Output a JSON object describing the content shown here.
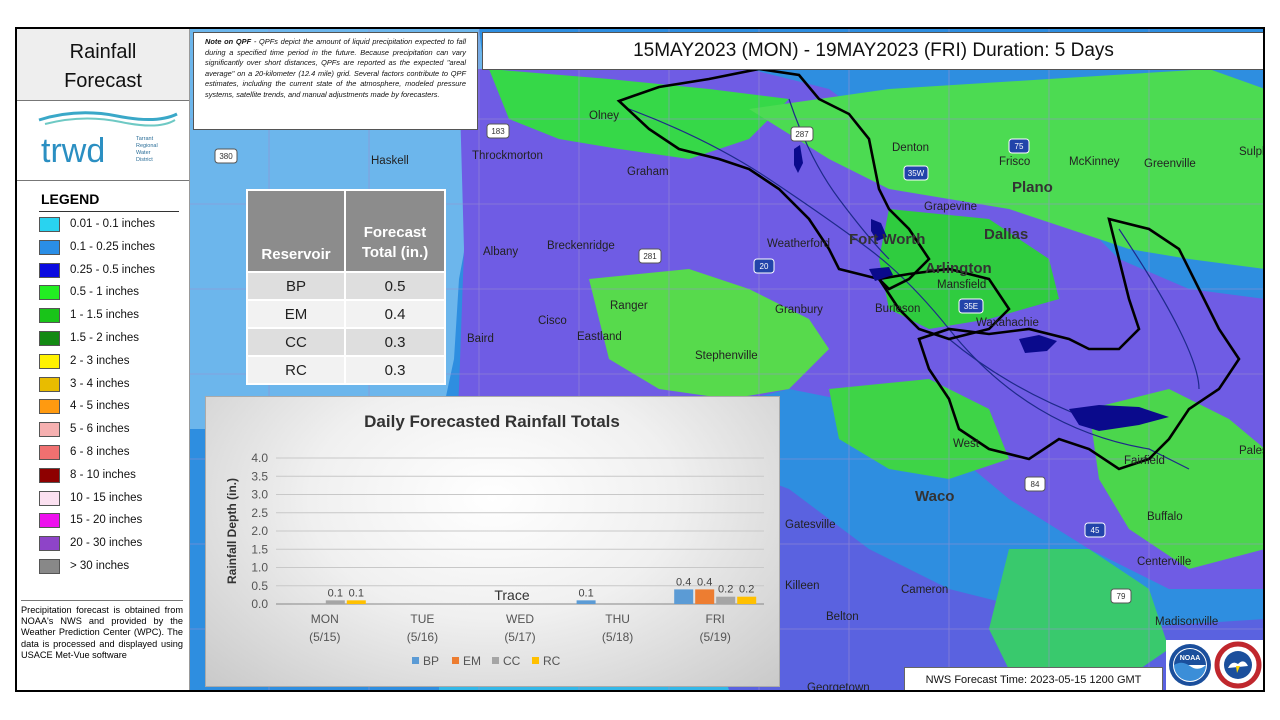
{
  "title": {
    "line1": "Rainfall",
    "line2": "Forecast"
  },
  "logo": {
    "text": "trwd",
    "org_lines": [
      "Tarrant",
      "Regional",
      "Water",
      "District"
    ]
  },
  "duration_header": "15MAY2023 (MON) - 19MAY2023 (FRI) Duration: 5 Days",
  "qpf_note": {
    "lead": "Note on QPF",
    "body": " - QPFs depict the amount of liquid precipitation expected to fall during a specified time period in the future. Because precipitation can vary significantly over short distances, QPFs are reported as the expected \"areal average\" on a 20-kilometer (12.4 mile) grid. Several factors contribute to QPF estimates, including the current state of the atmosphere, modeled pressure systems, satellite trends, and manual adjustments made by forecasters."
  },
  "legend": {
    "title": "LEGEND",
    "items": [
      {
        "label": "0.01 - 0.1 inches",
        "color": "#29d3f0"
      },
      {
        "label": "0.1 - 0.25 inches",
        "color": "#2a8ee6"
      },
      {
        "label": "0.25 - 0.5 inches",
        "color": "#0a0ae0"
      },
      {
        "label": "0.5 - 1 inches",
        "color": "#22ee22"
      },
      {
        "label": "1 - 1.5 inches",
        "color": "#19c419"
      },
      {
        "label": "1.5 - 2 inches",
        "color": "#138a13"
      },
      {
        "label": "2 - 3 inches",
        "color": "#fff200"
      },
      {
        "label": "3 - 4 inches",
        "color": "#e8bc00"
      },
      {
        "label": "4 - 5 inches",
        "color": "#ff9a10"
      },
      {
        "label": "5 - 6 inches",
        "color": "#f6b0b0"
      },
      {
        "label": "6 - 8 inches",
        "color": "#f07070"
      },
      {
        "label": "8 - 10 inches",
        "color": "#8e0000"
      },
      {
        "label": "10 - 15 inches",
        "color": "#fbe0f0"
      },
      {
        "label": "15 - 20 inches",
        "color": "#ee10ee"
      },
      {
        "label": "20 - 30 inches",
        "color": "#8e44c8"
      },
      {
        "label": "> 30 inches",
        "color": "#888888"
      }
    ]
  },
  "source_note": "Precipitation forecast is obtained from NOAA's NWS and provided by the Weather Prediction Center (WPC). The data is processed and displayed using USACE Met-Vue software",
  "reservoir_table": {
    "headers": [
      "Reservoir",
      "Forecast Total (in.)"
    ],
    "rows": [
      {
        "name": "BP",
        "total": "0.5"
      },
      {
        "name": "EM",
        "total": "0.4"
      },
      {
        "name": "CC",
        "total": "0.3"
      },
      {
        "name": "RC",
        "total": "0.3"
      }
    ]
  },
  "chart_data": {
    "type": "bar",
    "title": "Daily Forecasted Rainfall Totals",
    "xlabel": "",
    "ylabel": "Rainfall Depth (in.)",
    "ylim": [
      0,
      4.0
    ],
    "yticks": [
      "0.0",
      "0.5",
      "1.0",
      "1.5",
      "2.0",
      "2.5",
      "3.0",
      "3.5",
      "4.0"
    ],
    "categories": [
      "MON",
      "TUE",
      "WED",
      "THU",
      "FRI"
    ],
    "category_dates": [
      "(5/15)",
      "(5/16)",
      "(5/17)",
      "(5/18)",
      "(5/19)"
    ],
    "series": [
      {
        "name": "BP",
        "color": "#5b9bd5",
        "values": [
          0.0,
          0.0,
          0.0,
          0.1,
          0.4
        ],
        "labels": [
          "",
          "",
          "",
          "0.1",
          "0.4"
        ]
      },
      {
        "name": "EM",
        "color": "#ed7d31",
        "values": [
          0.0,
          0.0,
          0.0,
          0.0,
          0.4
        ],
        "labels": [
          "",
          "",
          "",
          "",
          "0.4"
        ]
      },
      {
        "name": "CC",
        "color": "#a5a5a5",
        "values": [
          0.1,
          0.0,
          0.0,
          0.0,
          0.2
        ],
        "labels": [
          "0.1",
          "",
          "",
          "",
          "0.2"
        ]
      },
      {
        "name": "RC",
        "color": "#ffc000",
        "values": [
          0.1,
          0.0,
          0.0,
          0.0,
          0.2
        ],
        "labels": [
          "0.1",
          "",
          "",
          "",
          "0.2"
        ]
      }
    ],
    "annotations": [
      {
        "category": "WED",
        "text": "Trace"
      }
    ],
    "grid": true,
    "legend_position": "bottom"
  },
  "map": {
    "cities": [
      {
        "name": "Olney"
      },
      {
        "name": "Haskell"
      },
      {
        "name": "Throckmorton"
      },
      {
        "name": "Graham"
      },
      {
        "name": "Denton"
      },
      {
        "name": "Frisco"
      },
      {
        "name": "McKinney"
      },
      {
        "name": "Greenville"
      },
      {
        "name": "Plano"
      },
      {
        "name": "Dallas"
      },
      {
        "name": "Fort Worth"
      },
      {
        "name": "Weatherford"
      },
      {
        "name": "Grapevine"
      },
      {
        "name": "Arlington"
      },
      {
        "name": "Mansfield"
      },
      {
        "name": "Albany"
      },
      {
        "name": "Breckenridge"
      },
      {
        "name": "Ranger"
      },
      {
        "name": "Cisco"
      },
      {
        "name": "Eastland"
      },
      {
        "name": "Baird"
      },
      {
        "name": "Granbury"
      },
      {
        "name": "Burleson"
      },
      {
        "name": "Waxahachie"
      },
      {
        "name": "Stephenville"
      },
      {
        "name": "West"
      },
      {
        "name": "Waco"
      },
      {
        "name": "Fairfield"
      },
      {
        "name": "Gatesville"
      },
      {
        "name": "Buffalo"
      },
      {
        "name": "Centerville"
      },
      {
        "name": "Killeen"
      },
      {
        "name": "Belton"
      },
      {
        "name": "Cameron"
      },
      {
        "name": "Madisonville"
      },
      {
        "name": "Georgetown"
      },
      {
        "name": "Sulphur Springs"
      },
      {
        "name": "Palestine"
      }
    ],
    "highways": [
      "183",
      "380",
      "287",
      "35W",
      "35E",
      "20",
      "281",
      "84",
      "45",
      "79",
      "75"
    ]
  },
  "nws_forecast_time": "NWS Forecast Time: 2023-05-15 1200 GMT",
  "agency_logos": [
    {
      "name": "NOAA",
      "icon": "noaa-logo"
    },
    {
      "name": "National Weather Service",
      "icon": "nws-logo"
    }
  ]
}
